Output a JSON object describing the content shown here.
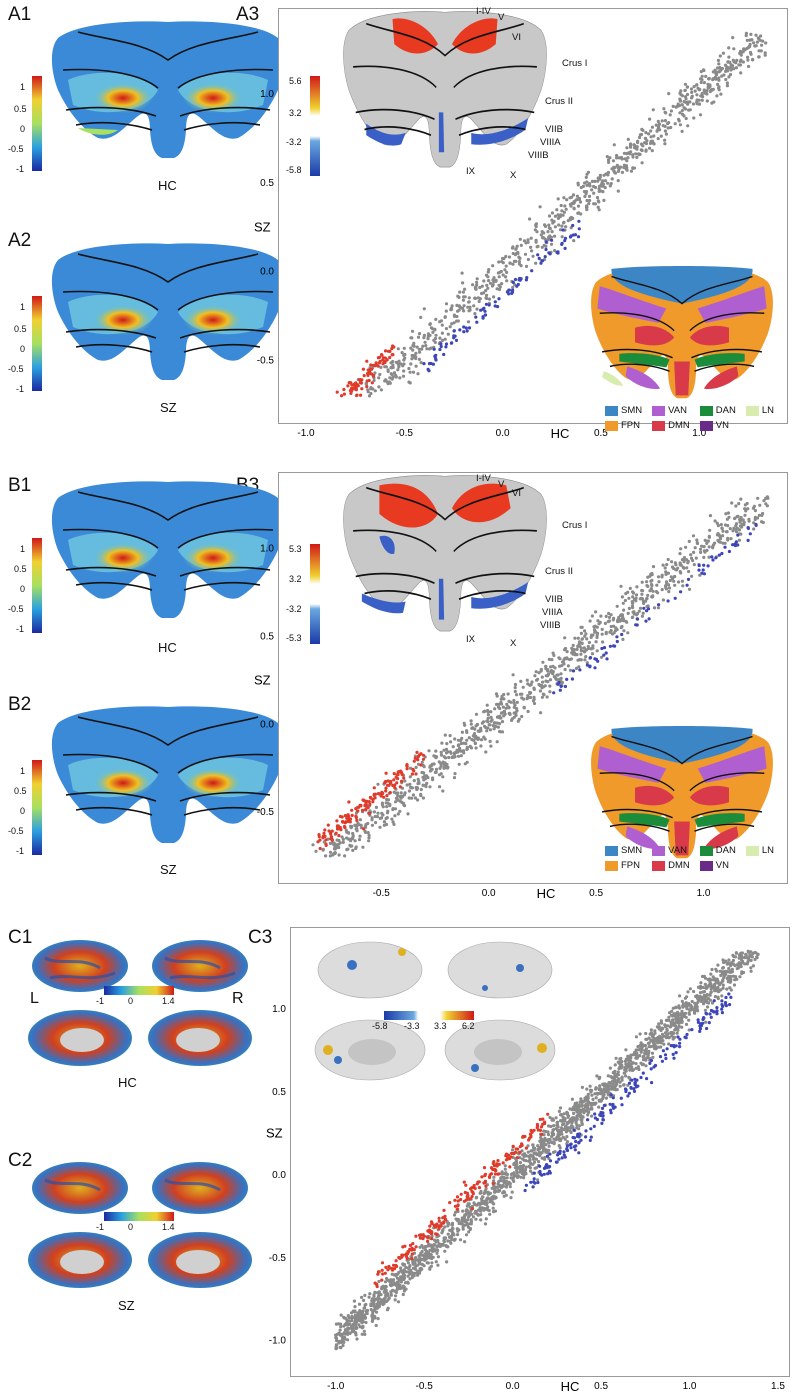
{
  "panelA": {
    "labels": {
      "a1": "A1",
      "a2": "A2",
      "a3": "A3"
    },
    "group_labels": {
      "a1": "HC",
      "a2": "SZ"
    },
    "colorbar_ticks": [
      "1",
      "0.5",
      "0",
      "-0.5",
      "-1"
    ],
    "t_colorbar_ticks": [
      "5.6",
      "3.2",
      "-3.2",
      "-5.8"
    ],
    "regions": [
      "I-IV",
      "V",
      "VI",
      "Crus I",
      "Crus II",
      "VIIB",
      "VIIIA",
      "VIIIB",
      "IX",
      "X"
    ]
  },
  "panelB": {
    "labels": {
      "b1": "B1",
      "b2": "B2",
      "b3": "B3"
    },
    "group_labels": {
      "b1": "HC",
      "b2": "SZ"
    },
    "colorbar_ticks": [
      "1",
      "0.5",
      "0",
      "-0.5",
      "-1"
    ],
    "t_colorbar_ticks": [
      "5.3",
      "3.2",
      "-3.2",
      "-5.3"
    ],
    "regions": [
      "I-IV",
      "V",
      "VI",
      "Crus I",
      "Crus II",
      "VIIB",
      "VIIIA",
      "VIIIB",
      "IX",
      "X"
    ]
  },
  "panelC": {
    "labels": {
      "c1": "C1",
      "c2": "C2",
      "c3": "C3"
    },
    "group_labels": {
      "c1": "HC",
      "c2": "SZ"
    },
    "hemi_left": "L",
    "hemi_right": "R",
    "colorbar_ticks": [
      "-1",
      "0",
      "1.4"
    ],
    "t_colorbar_ticks": [
      "-5.8",
      "-3.3",
      "3.3",
      "6.2"
    ]
  },
  "networks": [
    {
      "name": "SMN",
      "color": "#3d86c6"
    },
    {
      "name": "VAN",
      "color": "#b05fd0"
    },
    {
      "name": "DAN",
      "color": "#1b8c3a"
    },
    {
      "name": "LN",
      "color": "#d8ecb0"
    },
    {
      "name": "FPN",
      "color": "#ef9a2a"
    },
    {
      "name": "DMN",
      "color": "#d83a4a"
    },
    {
      "name": "VN",
      "color": "#6a2a8a"
    }
  ],
  "colors": {
    "red": "#e03a2a",
    "blue": "#3d46b8",
    "gray": "#8a8a8a"
  },
  "chart_data": [
    {
      "type": "scatter",
      "panel": "A3",
      "xlabel": "HC",
      "ylabel": "SZ",
      "xlim": [
        -1.0,
        1.35
      ],
      "ylim": [
        -0.7,
        1.35
      ],
      "xticks": [
        "-1.0",
        "-0.5",
        "0.0",
        "0.5",
        "1.0"
      ],
      "yticks": [
        "1.0",
        "0.5",
        "0.0",
        "-0.5"
      ],
      "series": [
        {
          "color": "gray",
          "trend": {
            "slope": 1.0,
            "intercept": 0.0,
            "x_range": [
              -0.92,
              1.35
            ],
            "spread": 0.12,
            "n": 900
          }
        },
        {
          "color": "red",
          "trend": {
            "slope": 1.0,
            "intercept": 0.1,
            "x_range": [
              -0.92,
              -0.55
            ],
            "spread": 0.06,
            "n": 120
          }
        },
        {
          "color": "blue",
          "trend": {
            "slope": 1.0,
            "intercept": -0.14,
            "x_range": [
              -0.4,
              0.4
            ],
            "spread": 0.05,
            "n": 90
          }
        }
      ]
    },
    {
      "type": "scatter",
      "panel": "B3",
      "xlabel": "HC",
      "ylabel": "SZ",
      "xlim": [
        -0.85,
        1.3
      ],
      "ylim": [
        -0.75,
        1.3
      ],
      "xticks": [
        "-0.5",
        "0.0",
        "0.5",
        "1.0"
      ],
      "yticks": [
        "1.0",
        "0.5",
        "0.0",
        "-0.5"
      ],
      "series": [
        {
          "color": "gray",
          "trend": {
            "slope": 1.0,
            "intercept": 0.0,
            "x_range": [
              -0.82,
              1.3
            ],
            "spread": 0.12,
            "n": 1000
          }
        },
        {
          "color": "red",
          "trend": {
            "slope": 1.0,
            "intercept": 0.12,
            "x_range": [
              -0.8,
              -0.3
            ],
            "spread": 0.06,
            "n": 150
          }
        },
        {
          "color": "blue",
          "trend": {
            "slope": 1.0,
            "intercept": -0.12,
            "x_range": [
              0.3,
              1.25
            ],
            "spread": 0.05,
            "n": 70
          }
        }
      ]
    },
    {
      "type": "scatter",
      "panel": "C3",
      "xlabel": "HC",
      "ylabel": "SZ",
      "xlim": [
        -1.1,
        1.5
      ],
      "ylim": [
        -1.05,
        1.35
      ],
      "xticks": [
        "-1.0",
        "-0.5",
        "0.0",
        "0.5",
        "1.0",
        "1.5"
      ],
      "yticks": [
        "1.0",
        "0.5",
        "0.0",
        "-0.5",
        "-1.0"
      ],
      "series": [
        {
          "color": "gray",
          "trend": {
            "slope": 1.0,
            "intercept": 0.0,
            "x_range": [
              -1.0,
              1.4
            ],
            "spread": 0.1,
            "n": 1800
          }
        },
        {
          "color": "red",
          "trend": {
            "slope": 1.0,
            "intercept": 0.13,
            "x_range": [
              -0.8,
              0.2
            ],
            "spread": 0.06,
            "n": 200
          }
        },
        {
          "color": "blue",
          "trend": {
            "slope": 1.0,
            "intercept": -0.15,
            "x_range": [
              0.05,
              1.25
            ],
            "spread": 0.06,
            "n": 180
          }
        }
      ]
    }
  ]
}
